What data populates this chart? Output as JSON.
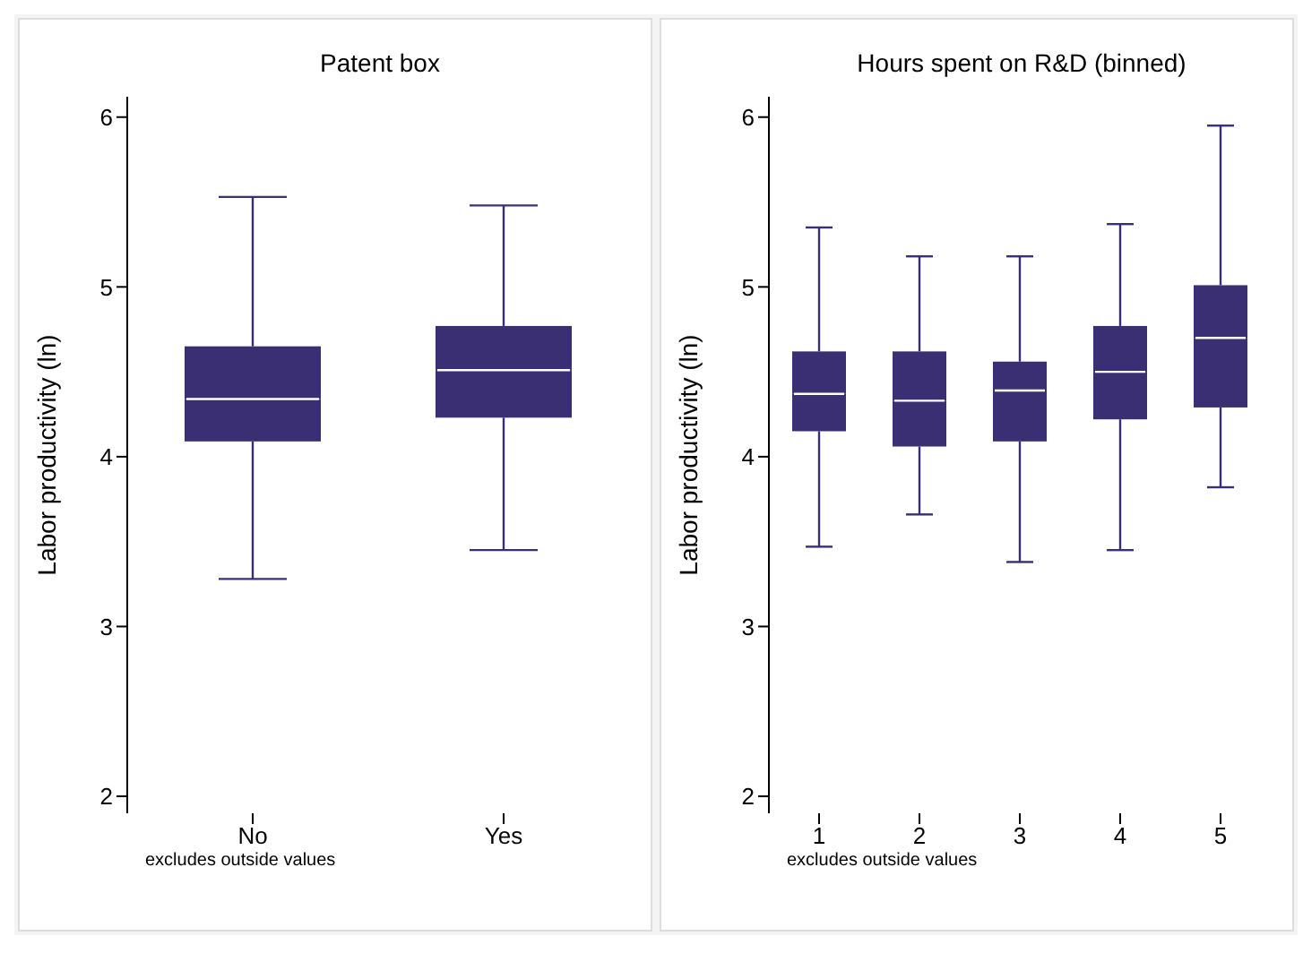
{
  "chart_data": [
    {
      "type": "box",
      "title": "Patent box",
      "ylabel": "Labor productivity (ln)",
      "categories": [
        "No",
        "Yes"
      ],
      "color": "#3b2f73",
      "ylim": [
        1.9,
        6.12
      ],
      "yticks": [
        2,
        3,
        4,
        5,
        6
      ],
      "annotations": [
        "excludes outside values"
      ],
      "boxes": [
        {
          "low": 3.28,
          "q1": 4.09,
          "median": 4.34,
          "q3": 4.65,
          "high": 5.53
        },
        {
          "low": 3.45,
          "q1": 4.23,
          "median": 4.51,
          "q3": 4.77,
          "high": 5.48
        }
      ]
    },
    {
      "type": "box",
      "title": "Hours spent on R&D (binned)",
      "ylabel": "Labor productivity (ln)",
      "categories": [
        "1",
        "2",
        "3",
        "4",
        "5"
      ],
      "color": "#3b2f73",
      "ylim": [
        1.9,
        6.12
      ],
      "yticks": [
        2,
        3,
        4,
        5,
        6
      ],
      "annotations": [
        "excludes outside values"
      ],
      "boxes": [
        {
          "low": 3.47,
          "q1": 4.15,
          "median": 4.37,
          "q3": 4.62,
          "high": 5.35
        },
        {
          "low": 3.66,
          "q1": 4.06,
          "median": 4.33,
          "q3": 4.62,
          "high": 5.18
        },
        {
          "low": 3.38,
          "q1": 4.09,
          "median": 4.39,
          "q3": 4.56,
          "high": 5.18
        },
        {
          "low": 3.45,
          "q1": 4.22,
          "median": 4.5,
          "q3": 4.77,
          "high": 5.37
        },
        {
          "low": 3.82,
          "q1": 4.29,
          "median": 4.7,
          "q3": 5.01,
          "high": 5.95
        }
      ]
    }
  ]
}
